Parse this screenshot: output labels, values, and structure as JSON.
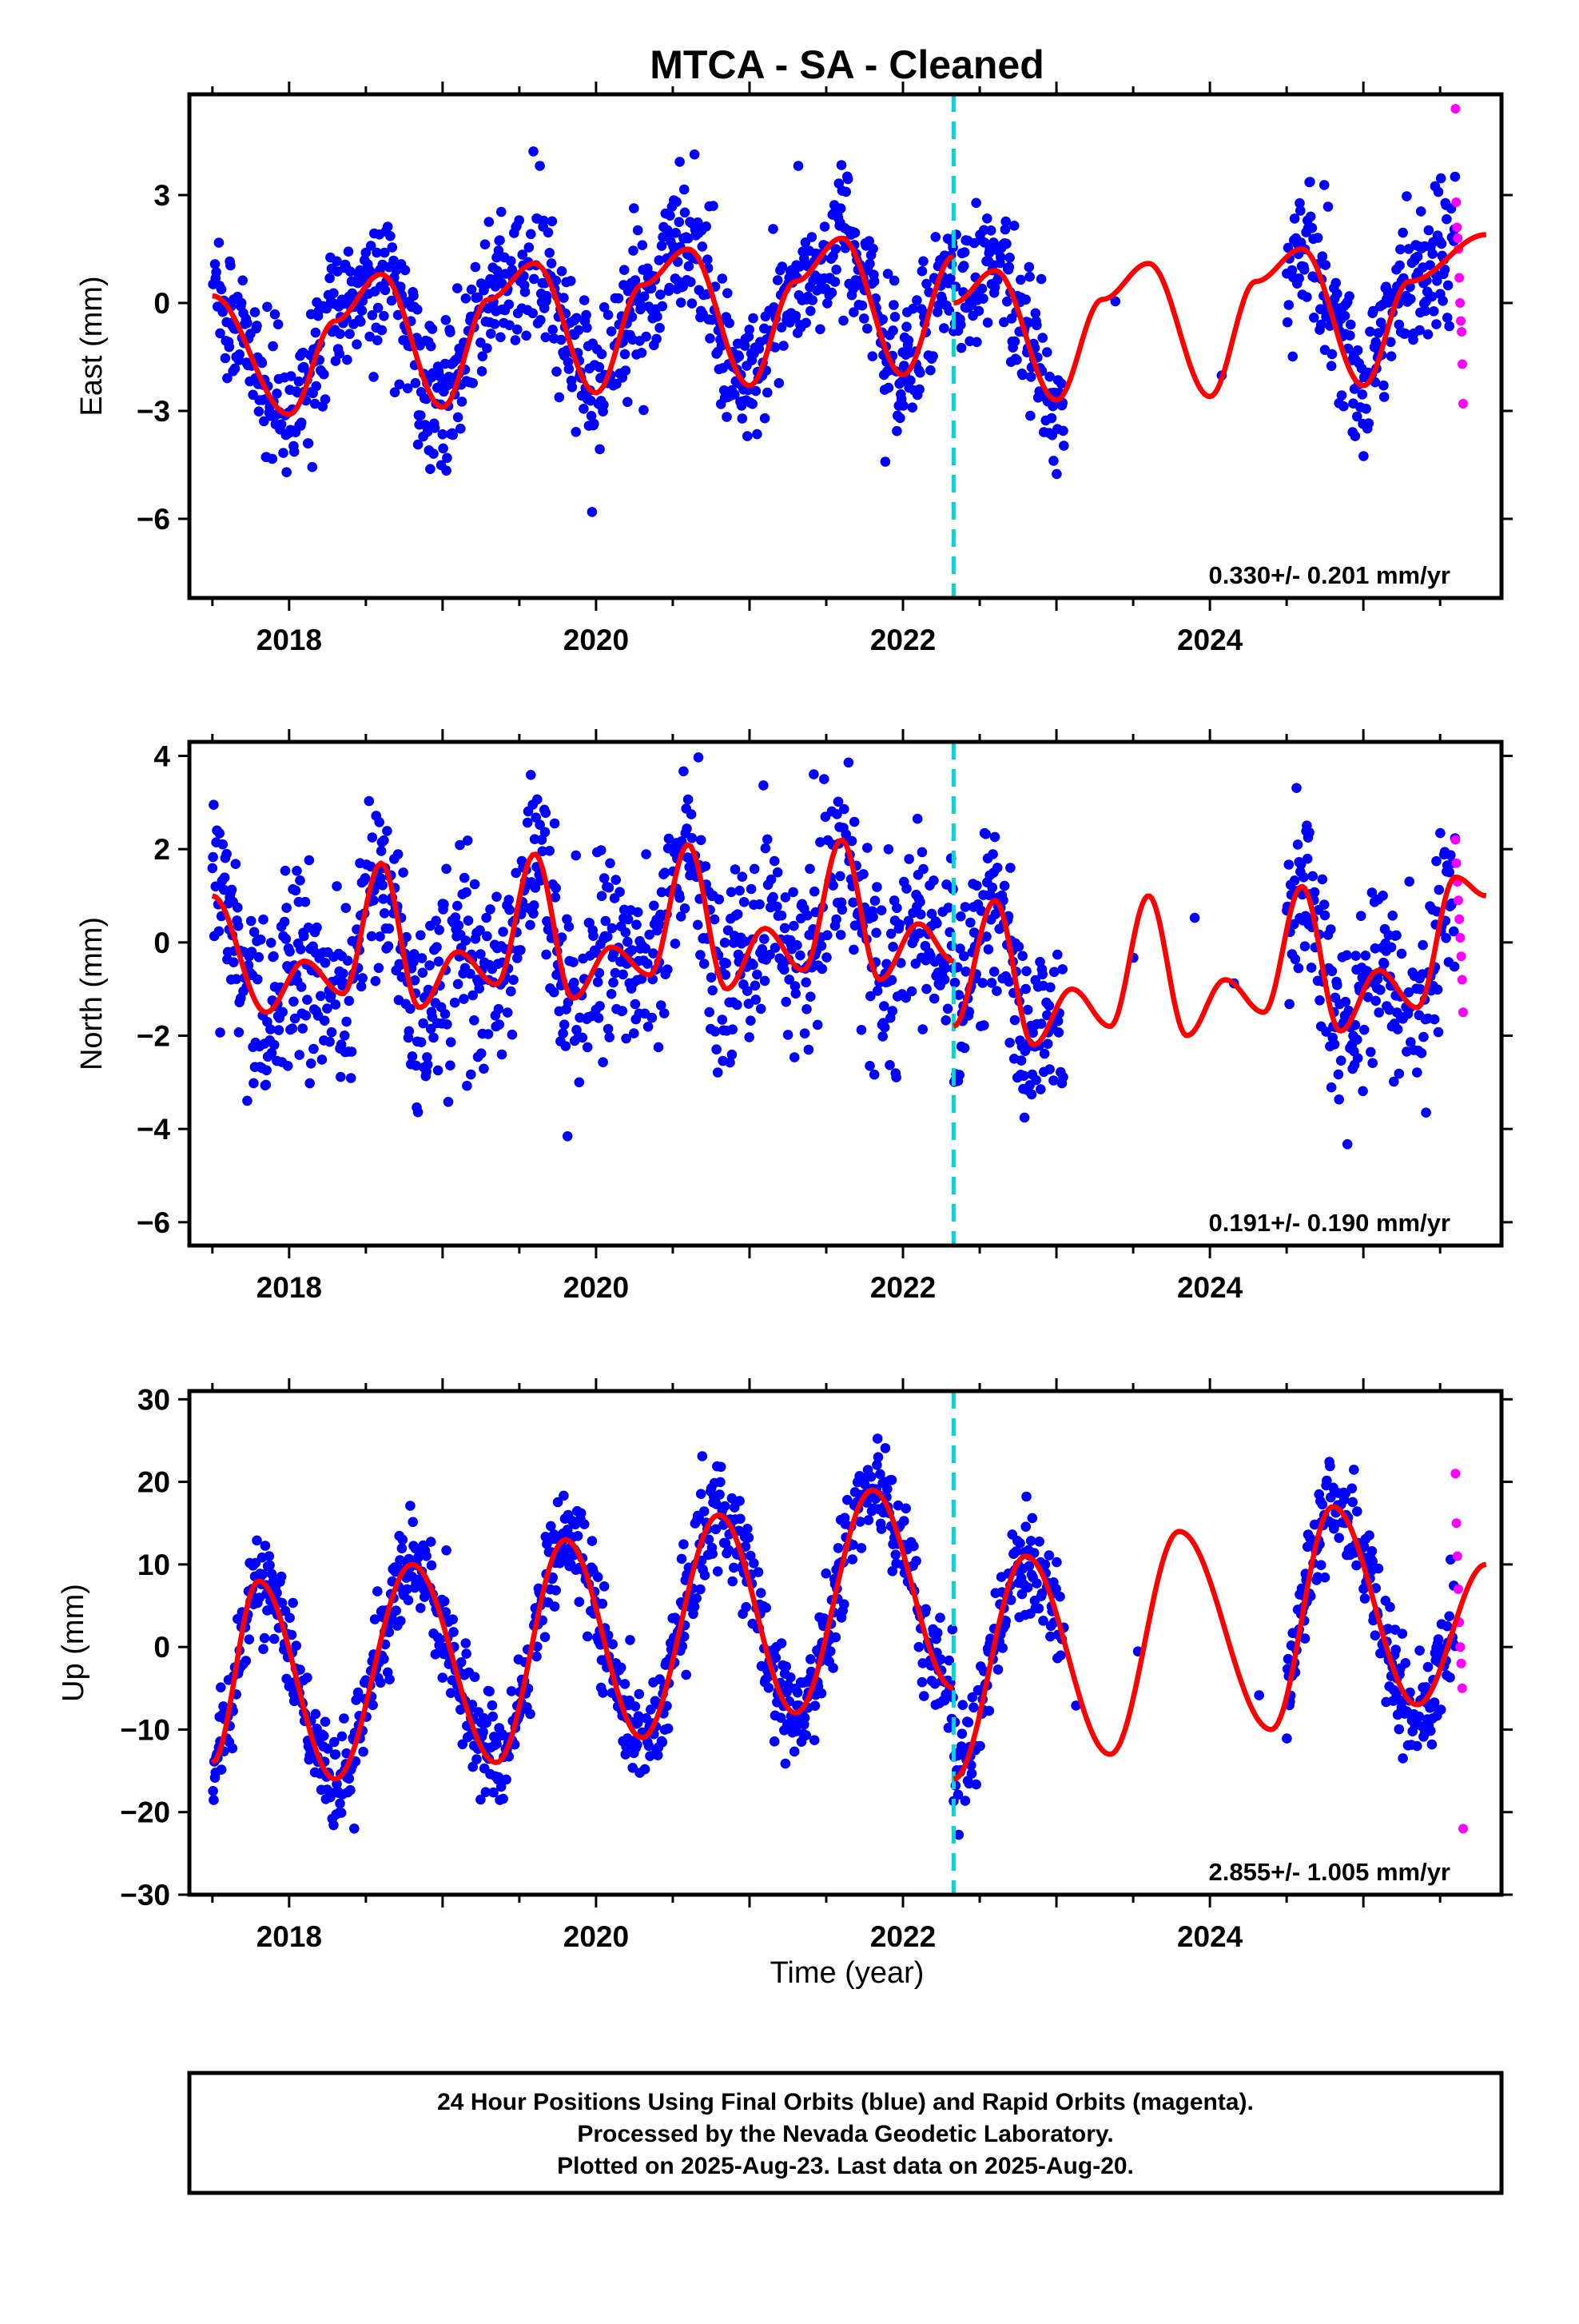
{
  "title": "MTCA  - SA - Cleaned",
  "xlabel": "Time (year)",
  "footer": [
    "24 Hour Positions Using Final Orbits (blue) and Rapid Orbits (magenta).",
    "Processed by the Nevada Geodetic Laboratory.",
    "Plotted on 2025-Aug-23. Last data on 2025-Aug-20."
  ],
  "colors": {
    "final_orbits": "#0000ff",
    "rapid_orbits": "#ff00ff",
    "model_fit": "#ff0000",
    "equipment_change": "#00d8d8"
  },
  "chart_data": [
    {
      "type": "scatter",
      "name": "east",
      "ylabel": "East (mm)",
      "rate_label": "0.330+/- 0.201 mm/yr",
      "xlim": [
        2017.35,
        2025.9
      ],
      "ylim": [
        -8.2,
        5.8
      ],
      "xticks": [
        2018,
        2020,
        2022,
        2024
      ],
      "yticks": [
        -6,
        -3,
        0,
        3
      ],
      "ytick_labels": [
        "−6",
        "−3",
        "0",
        "3"
      ],
      "grid": false,
      "offset_epoch": 2022.33,
      "trend_mm_per_yr": 0.33,
      "model": {
        "seg1": {
          "x": [
            2017.5,
            2018.0,
            2018.3,
            2018.6,
            2019.0,
            2019.3,
            2019.6,
            2020.0,
            2020.3,
            2020.6,
            2021.0,
            2021.3,
            2021.6,
            2022.0,
            2022.33
          ],
          "y": [
            0.2,
            -3.1,
            -0.5,
            0.8,
            -2.9,
            0.1,
            1.1,
            -2.5,
            0.5,
            1.5,
            -2.3,
            0.6,
            1.8,
            -2.0,
            1.3
          ]
        },
        "seg2": {
          "x": [
            2022.33,
            2022.6,
            2023.0,
            2023.3,
            2023.6,
            2024.0,
            2024.3,
            2024.6,
            2025.0,
            2025.3,
            2025.8
          ],
          "y": [
            0.0,
            0.9,
            -2.7,
            0.1,
            1.1,
            -2.6,
            0.6,
            1.5,
            -2.3,
            0.6,
            1.9
          ]
        }
      },
      "scatter_sigma": 1.0,
      "gaps": [
        [
          2023.05,
          2024.5
        ]
      ],
      "rapid": {
        "x_start": 2025.6,
        "x_end": 2025.65,
        "values": [
          5.4,
          2.8,
          2.1,
          1.8,
          1.5,
          0.7,
          0.0,
          -0.5,
          -0.8,
          -1.7,
          -2.8
        ]
      }
    },
    {
      "type": "scatter",
      "name": "north",
      "ylabel": "North (mm)",
      "rate_label": "0.191+/- 0.190 mm/yr",
      "xlim": [
        2017.35,
        2025.9
      ],
      "ylim": [
        -6.5,
        4.3
      ],
      "xticks": [
        2018,
        2020,
        2022,
        2024
      ],
      "yticks": [
        -6,
        -4,
        -2,
        0,
        2,
        4
      ],
      "ytick_labels": [
        "−6",
        "−4",
        "−2",
        "0",
        "2",
        "4"
      ],
      "grid": false,
      "offset_epoch": 2022.33,
      "trend_mm_per_yr": 0.19,
      "model": {
        "seg1": {
          "x": [
            2017.5,
            2017.85,
            2018.1,
            2018.35,
            2018.6,
            2018.85,
            2019.1,
            2019.35,
            2019.6,
            2019.85,
            2020.1,
            2020.35,
            2020.6,
            2020.85,
            2021.1,
            2021.35,
            2021.6,
            2021.85,
            2022.1,
            2022.33
          ],
          "y": [
            1.0,
            -1.5,
            -0.4,
            -1.1,
            1.7,
            -1.4,
            -0.2,
            -0.9,
            1.9,
            -1.2,
            -0.1,
            -0.7,
            2.1,
            -1.0,
            0.3,
            -0.6,
            2.2,
            -0.8,
            0.4,
            -0.4
          ]
        },
        "seg2": {
          "x": [
            2022.33,
            2022.6,
            2022.85,
            2023.1,
            2023.35,
            2023.6,
            2023.85,
            2024.1,
            2024.35,
            2024.6,
            2024.85,
            2025.1,
            2025.35,
            2025.6,
            2025.8
          ],
          "y": [
            -1.8,
            0.9,
            -2.2,
            -1.0,
            -1.8,
            1.0,
            -2.0,
            -0.8,
            -1.5,
            1.2,
            -1.9,
            -0.6,
            -1.4,
            1.4,
            1.0
          ]
        }
      },
      "scatter_sigma": 1.05,
      "gaps": [
        [
          2023.05,
          2024.5
        ]
      ],
      "rapid": {
        "x_start": 2025.6,
        "x_end": 2025.65,
        "values": [
          2.2,
          1.7,
          1.3,
          0.9,
          0.5,
          0.1,
          -0.3,
          -0.8,
          -1.5
        ]
      }
    },
    {
      "type": "scatter",
      "name": "up",
      "ylabel": "Up (mm)",
      "rate_label": "2.855+/- 1.005 mm/yr",
      "xlim": [
        2017.35,
        2025.9
      ],
      "ylim": [
        -30,
        31
      ],
      "xticks": [
        2018,
        2020,
        2022,
        2024
      ],
      "yticks": [
        -30,
        -20,
        -10,
        0,
        10,
        20,
        30
      ],
      "ytick_labels": [
        "−30",
        "−20",
        "−10",
        "0",
        "10",
        "20",
        "30"
      ],
      "grid": false,
      "offset_epoch": 2022.33,
      "trend_mm_per_yr": 2.855,
      "model": {
        "seg1": {
          "x": [
            2017.5,
            2017.8,
            2018.3,
            2018.8,
            2019.35,
            2019.8,
            2020.3,
            2020.8,
            2021.3,
            2021.8,
            2022.33
          ],
          "y": [
            -14,
            8,
            -16,
            10,
            -14,
            13,
            -11,
            16,
            -8,
            19,
            -5
          ]
        },
        "seg2": {
          "x": [
            2022.33,
            2022.8,
            2023.35,
            2023.8,
            2024.4,
            2024.8,
            2025.35,
            2025.8
          ],
          "y": [
            -16,
            11,
            -13,
            14,
            -10,
            17,
            -7,
            10
          ]
        }
      },
      "scatter_sigma": 3.2,
      "gaps": [
        [
          2023.05,
          2024.5
        ]
      ],
      "rapid": {
        "x_start": 2025.6,
        "x_end": 2025.65,
        "values": [
          21,
          15,
          11,
          7,
          3,
          0,
          -2,
          -5,
          -22
        ]
      }
    }
  ]
}
